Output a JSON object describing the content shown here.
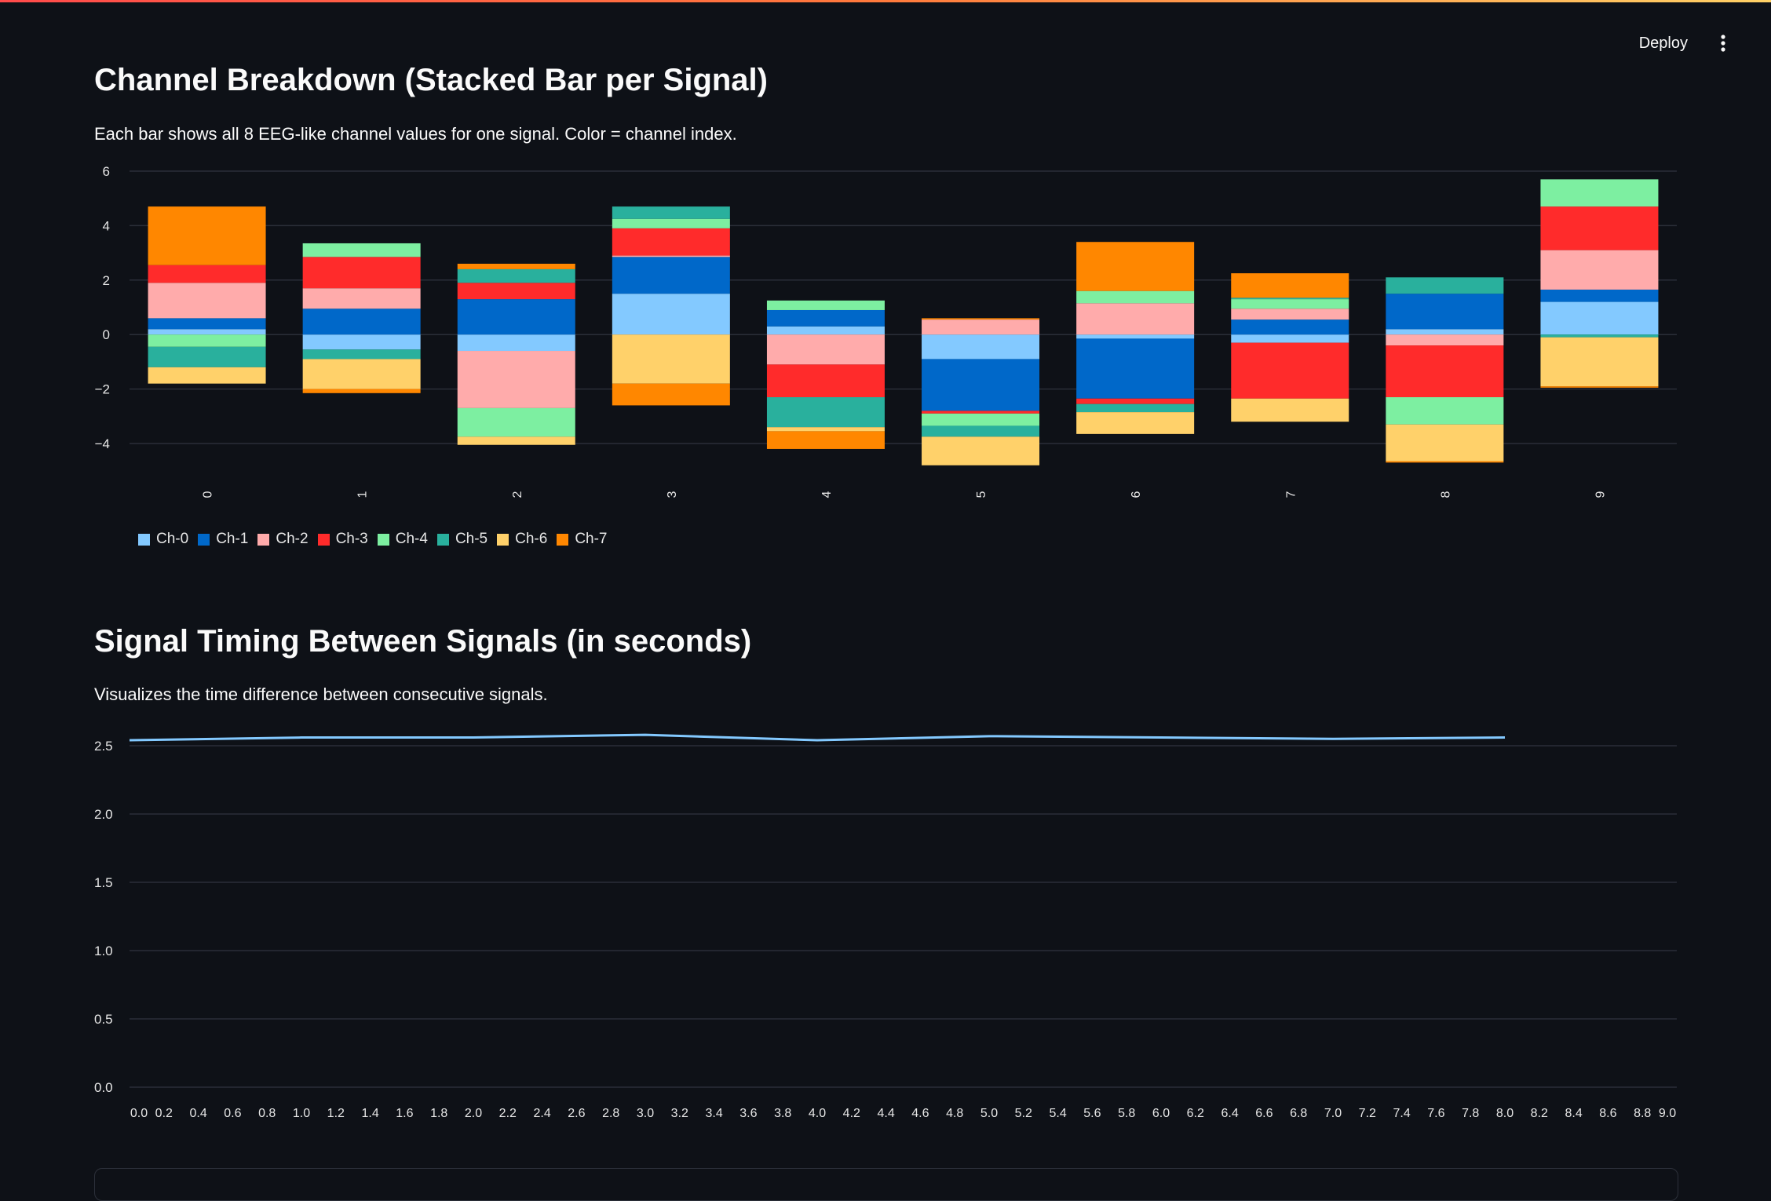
{
  "header": {
    "deploy_label": "Deploy",
    "menu_icon": "more-vert-icon"
  },
  "section1": {
    "title": "Channel Breakdown (Stacked Bar per Signal)",
    "caption": "Each bar shows all 8 EEG-like channel values for one signal. Color = channel index."
  },
  "section2": {
    "title": "Signal Timing Between Signals (in seconds)",
    "caption": "Visualizes the time difference between consecutive signals."
  },
  "colors": {
    "background": "#0e1117",
    "grid": "#2a2e38",
    "tick_text": "#e6e6e6",
    "line": "#83c9ff"
  },
  "chart_data": [
    {
      "type": "bar",
      "stacked": true,
      "categories": [
        "0",
        "1",
        "2",
        "3",
        "4",
        "5",
        "6",
        "7",
        "8",
        "9"
      ],
      "ylim": [
        -5,
        6
      ],
      "yticks": [
        6,
        4,
        2,
        0,
        -2,
        -4
      ],
      "ytick_labels": [
        "6",
        "4",
        "2",
        "0",
        "−2",
        "−4"
      ],
      "xlabel": "",
      "ylabel": "",
      "legend_position": "bottom-left",
      "series": [
        {
          "name": "Ch-0",
          "color": "#83c9ff",
          "values": [
            0.2,
            -0.55,
            -0.6,
            1.5,
            0.3,
            -0.9,
            -0.15,
            -0.3,
            0.2,
            1.2
          ]
        },
        {
          "name": "Ch-1",
          "color": "#0068c9",
          "values": [
            0.4,
            0.95,
            1.3,
            1.35,
            0.6,
            -1.9,
            -2.2,
            0.55,
            1.3,
            0.45
          ]
        },
        {
          "name": "Ch-2",
          "color": "#ffabab",
          "values": [
            1.3,
            0.75,
            -2.1,
            0.05,
            -1.1,
            0.55,
            1.15,
            0.4,
            -0.4,
            1.45
          ]
        },
        {
          "name": "Ch-3",
          "color": "#ff2b2b",
          "values": [
            0.65,
            1.15,
            0.6,
            1.0,
            -1.2,
            -0.1,
            -0.2,
            -2.05,
            -1.9,
            1.6
          ]
        },
        {
          "name": "Ch-4",
          "color": "#7defa1",
          "values": [
            -0.45,
            0.5,
            -1.05,
            0.35,
            0.35,
            -0.45,
            0.45,
            0.35,
            -1.0,
            1.0
          ]
        },
        {
          "name": "Ch-5",
          "color": "#29b09d",
          "values": [
            -0.75,
            -0.35,
            0.5,
            0.45,
            -1.1,
            -0.4,
            -0.3,
            0.05,
            0.6,
            -0.1
          ]
        },
        {
          "name": "Ch-6",
          "color": "#ffd16a",
          "values": [
            -0.6,
            -1.1,
            -0.3,
            -1.8,
            -0.15,
            -1.05,
            -0.8,
            -0.85,
            -1.35,
            -1.8
          ]
        },
        {
          "name": "Ch-7",
          "color": "#ff8700",
          "values": [
            2.15,
            -0.15,
            0.2,
            -0.8,
            -0.65,
            0.05,
            1.8,
            0.9,
            -0.05,
            -0.05
          ]
        }
      ]
    },
    {
      "type": "line",
      "x": [
        0,
        1,
        2,
        3,
        4,
        5,
        6,
        7,
        8
      ],
      "series": [
        {
          "values": [
            2.54,
            2.56,
            2.56,
            2.58,
            2.54,
            2.57,
            2.56,
            2.55,
            2.56
          ]
        }
      ],
      "xlim": [
        0,
        9
      ],
      "ylim": [
        0,
        2.55
      ],
      "yticks": [
        2.5,
        2.0,
        1.5,
        1.0,
        0.5,
        0.0
      ],
      "ytick_labels": [
        "2.5",
        "2.0",
        "1.5",
        "1.0",
        "0.5",
        "0.0"
      ],
      "xtick_labels": [
        "0.0",
        "0.2",
        "0.4",
        "0.6",
        "0.8",
        "1.0",
        "1.2",
        "1.4",
        "1.6",
        "1.8",
        "2.0",
        "2.2",
        "2.4",
        "2.6",
        "2.8",
        "3.0",
        "3.2",
        "3.4",
        "3.6",
        "3.8",
        "4.0",
        "4.2",
        "4.4",
        "4.6",
        "4.8",
        "5.0",
        "5.2",
        "5.4",
        "5.6",
        "5.8",
        "6.0",
        "6.2",
        "6.4",
        "6.6",
        "6.8",
        "7.0",
        "7.2",
        "7.4",
        "7.6",
        "7.8",
        "8.0",
        "8.2",
        "8.4",
        "8.6",
        "8.8",
        "9.0"
      ],
      "xlabel": "",
      "ylabel": ""
    }
  ]
}
